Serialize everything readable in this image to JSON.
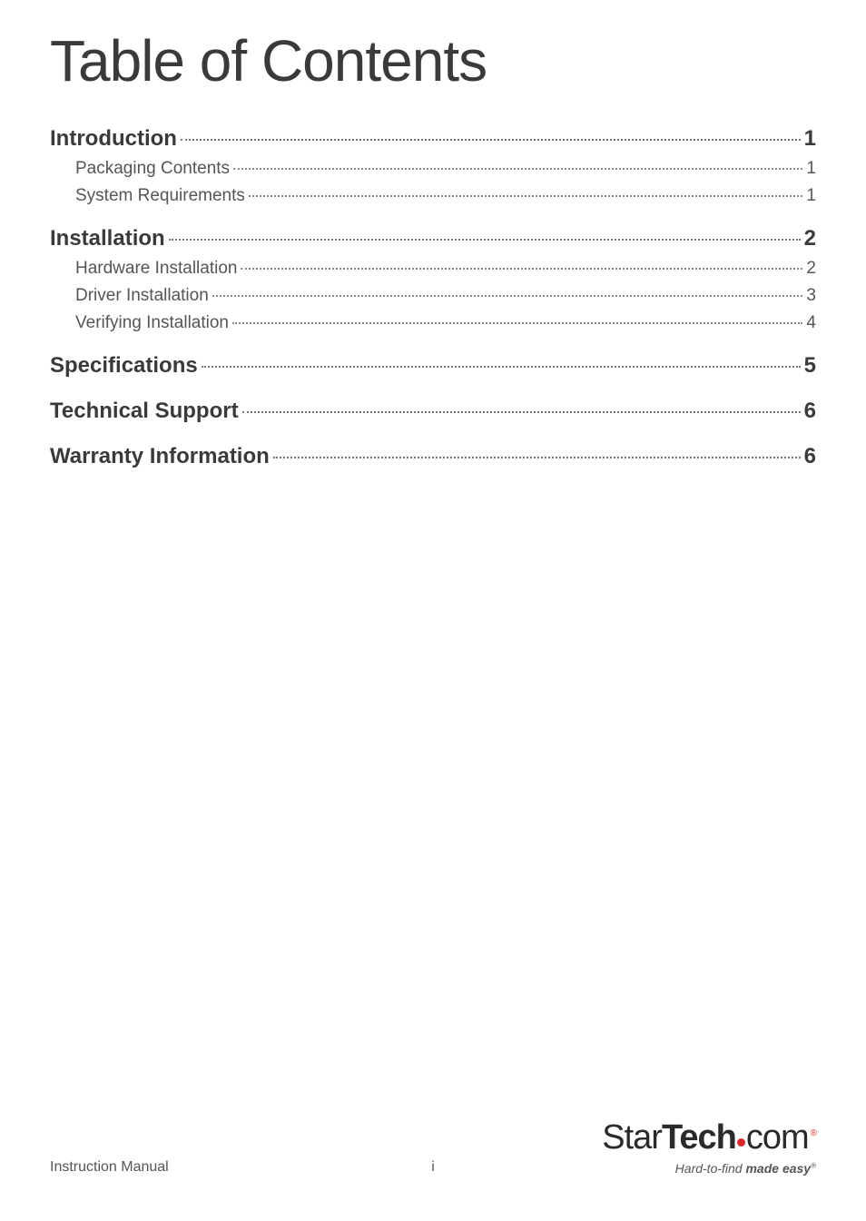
{
  "title": "Table of Contents",
  "toc": {
    "sections": [
      {
        "label": "Introduction",
        "page": "1",
        "subs": [
          {
            "label": "Packaging Contents",
            "page": "1"
          },
          {
            "label": "System Requirements",
            "page": "1"
          }
        ]
      },
      {
        "label": "Installation",
        "page": "2",
        "subs": [
          {
            "label": "Hardware Installation",
            "page": "2"
          },
          {
            "label": "Driver Installation",
            "page": "3"
          },
          {
            "label": "Verifying Installation",
            "page": "4"
          }
        ]
      },
      {
        "label": "Specifications",
        "page": "5",
        "subs": []
      },
      {
        "label": "Technical Support",
        "page": "6",
        "subs": []
      },
      {
        "label": "Warranty Information",
        "page": "6",
        "subs": []
      }
    ]
  },
  "footer": {
    "left": "Instruction Manual",
    "center": "i",
    "logo_part1": "Star",
    "logo_part2": "Tech",
    "logo_part3": "com",
    "logo_registered": "®",
    "tagline_part1": "Hard-to-find ",
    "tagline_part2": "made easy",
    "tagline_registered": "®"
  },
  "styling": {
    "background_color": "#ffffff",
    "title_color": "#3a3a3a",
    "title_fontsize": 64,
    "section_color": "#3a3a3a",
    "section_fontsize": 24,
    "sub_color": "#555555",
    "sub_fontsize": 19,
    "dot_color": "#777777",
    "footer_color": "#555555",
    "footer_fontsize": 16,
    "logo_color": "#2a2a2a",
    "logo_accent_color": "#d7282f",
    "logo_fontsize": 38,
    "tagline_fontsize": 14
  }
}
